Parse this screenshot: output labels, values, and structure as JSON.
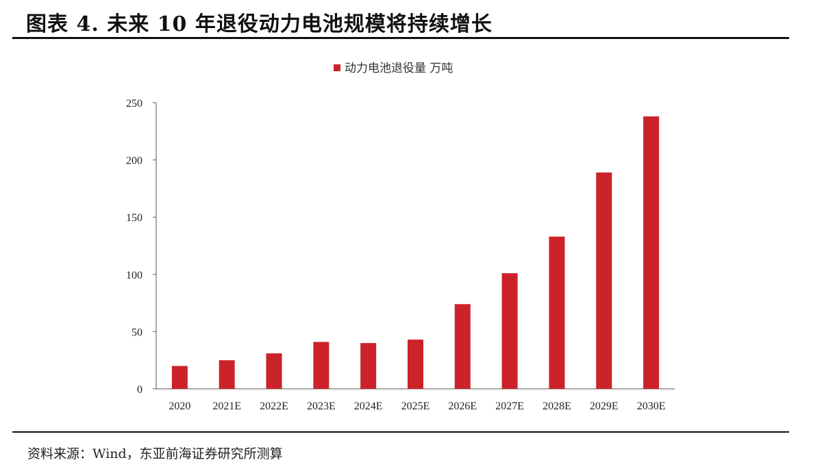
{
  "header": {
    "title": "图表 4.  未来 10 年退役动力电池规模将持续增长"
  },
  "source": {
    "text": "资料来源：Wind，东亚前海证券研究所测算"
  },
  "colors": {
    "bar": "#cc2229",
    "axis": "#555555",
    "text": "#222222"
  },
  "chart_data": {
    "type": "bar",
    "categories": [
      "2020",
      "2021E",
      "2022E",
      "2023E",
      "2024E",
      "2025E",
      "2026E",
      "2027E",
      "2028E",
      "2029E",
      "2030E"
    ],
    "series": [
      {
        "name": "动力电池退役量 万吨",
        "values": [
          20,
          25,
          31,
          41,
          40,
          43,
          74,
          101,
          133,
          189,
          238
        ]
      }
    ],
    "yticks": [
      0,
      50,
      100,
      150,
      200,
      250
    ],
    "ylim": [
      0,
      250
    ],
    "legend_position": "top-center",
    "grid": false
  }
}
